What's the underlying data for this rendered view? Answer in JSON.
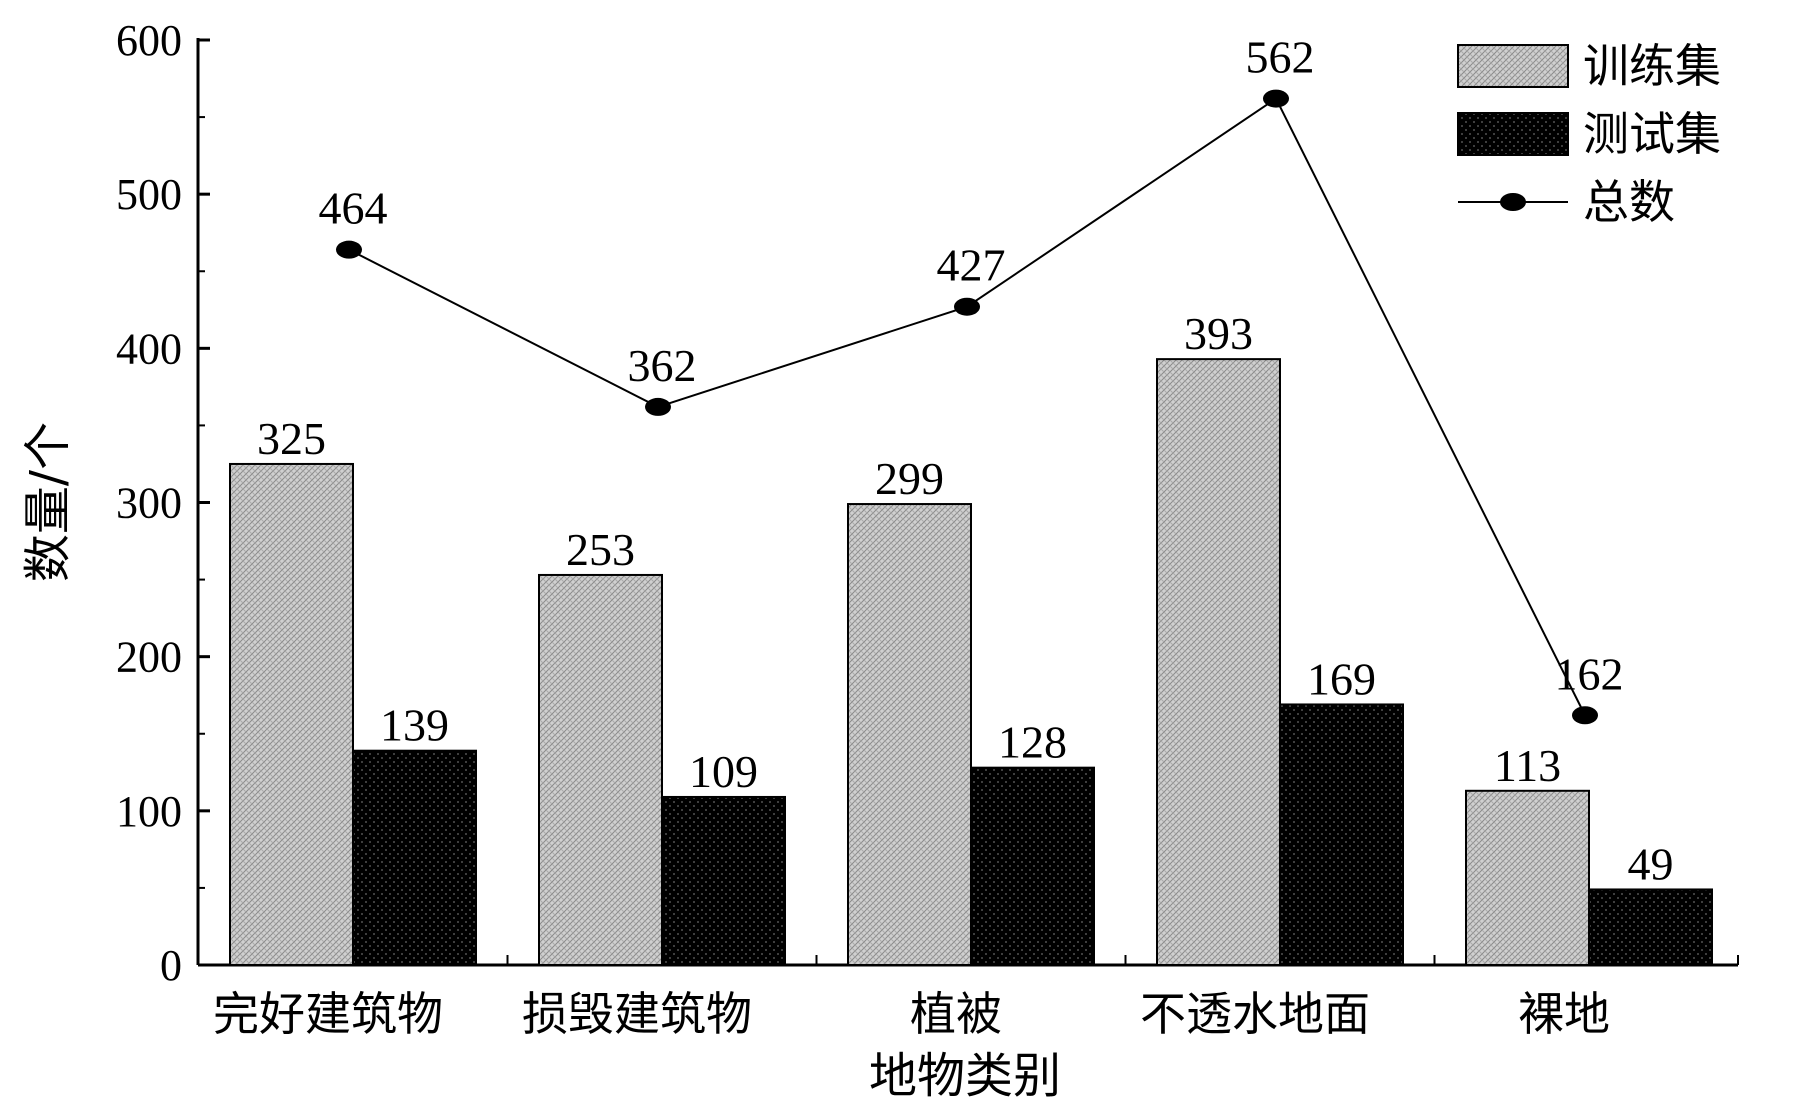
{
  "chart_data": {
    "type": "bar",
    "categories": [
      "完好建筑物",
      "损毁建筑物",
      "植被",
      "不透水地面",
      "裸地"
    ],
    "series": [
      {
        "name": "训练集",
        "type": "bar",
        "values": [
          325,
          253,
          299,
          393,
          113
        ],
        "color": "#c8c8c8"
      },
      {
        "name": "测试集",
        "type": "bar",
        "values": [
          139,
          109,
          128,
          169,
          49
        ],
        "color": "#000000"
      },
      {
        "name": "总数",
        "type": "line",
        "values": [
          464,
          362,
          427,
          562,
          162
        ],
        "color": "#000000"
      }
    ],
    "xlabel": "地物类别",
    "ylabel": "数量/个",
    "ylim": [
      0,
      600
    ],
    "yticks": [
      "0",
      "100",
      "200",
      "300",
      "400",
      "500",
      "600"
    ],
    "grid": false,
    "legend": "top-right"
  }
}
